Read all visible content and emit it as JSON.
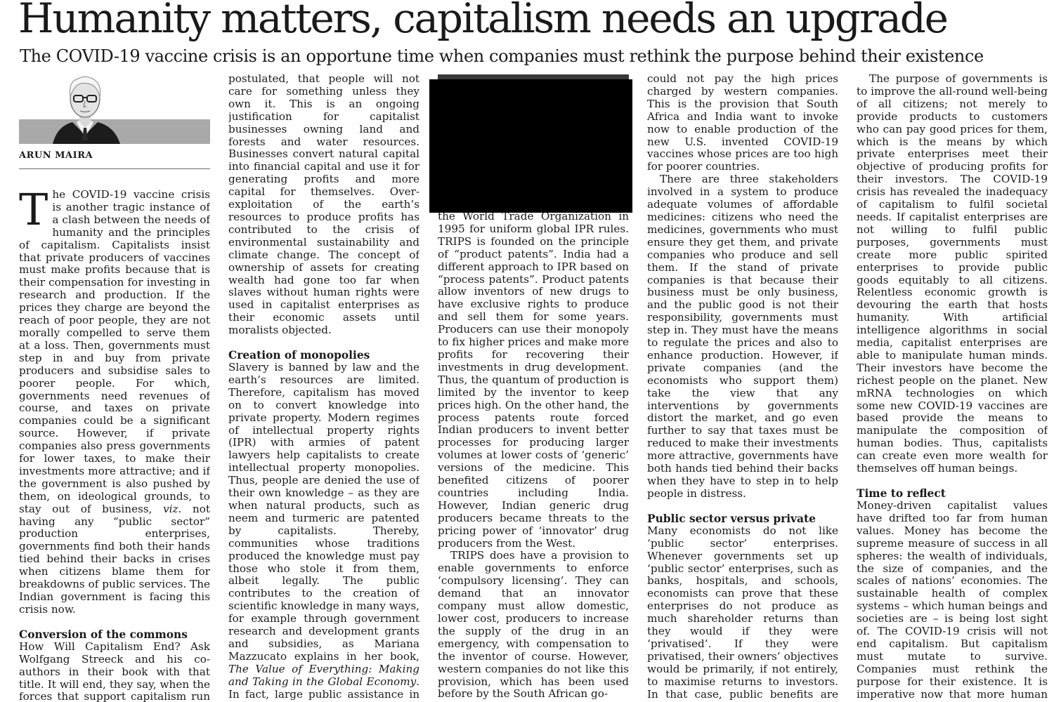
{
  "article": {
    "headline": "Humanity matters, capitalism needs an upgrade",
    "subheadline": "The COVID-19 vaccine crisis is an opportune time when companies must rethink the purpose behind their existence",
    "author": "ARUN MAIRA"
  },
  "col1": {
    "drop_cap": "T",
    "p1": "he COVID-19 vaccine crisis is another tragic instance of a clash between the needs of humanity and the principles of capitalism. Capitalists insist that private producers of vaccines must make profits because that is their compensation for investing in research and production. If the prices they charge are beyond the reach of poor people, they are not morally compelled to serve them at a loss. Then, governments must step in and buy from private producers and subsidise sales to poorer people. For which, governments need revenues of course, and taxes on private companies could be a significant source. However, if private companies also press governments for lower taxes, to make their investments more attractive; and if the government is also pushed by them, on ideological grounds, to stay out of business,",
    "p1_viz": "viz.",
    "p1_end": " not having any “public sector” production enterprises, governments find both their hands tied behind their backs in crises when citizens blame them for breakdowns of public services. The Indian government is facing this crisis now.",
    "h1": "Conversion of the commons",
    "p2": "How Will Capitalism End? Ask Wolfgang Streeck and his co-authors in their book with that title. It will end, they say, when the forces that support capitalism run out. Capitalism expands by converting"
  },
  "col2": {
    "p1": "postulated, that people will not care for something unless they own it. This is an ongoing justification for capitalist businesses owning land and forests and water resources. Businesses convert natural capital into financial capital and use it for generating profits and more capital for themselves. Over-exploitation of the earth’s resources to produce profits has contributed to the crisis of environmental sustainability and climate change. The concept of ownership of assets for creating wealth had gone too far when slaves without human rights were used in capitalist enterprises as their economic assets until moralists objected.",
    "h1": "Creation of monopolies",
    "p2": "Slavery is banned by law and the earth’s resources are limited. Therefore, capitalism has moved on to convert knowledge into private property. Modern regimes of intellectual property rights (IPR) with armies of patent lawyers help capitalists to create intellectual property monopolies. Thus, people are denied the use of their own knowledge – as they are when natural products, such as neem and turmeric are patented by capitalists. Thereby, communities whose traditions produced the knowledge must pay those who stole it from them, albeit legally. The public contributes to the creation of scientific knowledge in many ways, for example through government research and development grants and subsidies, as Mariana Mazzucato explains in her book, ",
    "p2_book": "The Value of Everything: Making and Taking in the Global Economy",
    "p2_end": ". In fact, large public assistance in various ways has enabled U.S. pharmaceutical companies to de-"
  },
  "col3": {
    "p1": "the World Trade Organization in 1995 for uniform global IPR rules. TRIPS is founded on the principle of “product patents”. India had a different approach to IPR based on “process patents”. Product patents allow inventors of new drugs to have exclusive rights to produce and sell them for some years. Producers can use their monopoly to fix higher prices and make more profits for recovering their investments in drug development. Thus, the quantum of production is limited by the inventor to keep prices high. On the other hand, the process patents route forced Indian producers to invent better processes for producing larger volumes at lower costs of ‘generic’ versions of the medicine. This benefited citizens of poorer countries including India. However, Indian generic drug producers became threats to the pricing power of ‘innovator’ drug producers from the West.",
    "p2": "TRIPS does have a provision to enable governments to enforce ‘compulsory licensing’. They can demand that an innovator company must allow domestic, lower cost, producers to increase the supply of the drug in an emergency, with compensation to the inventor of course. However, western companies do not like this provision, which has been used before by the South African go-"
  },
  "col4": {
    "p1": "could not pay the high prices charged by western companies. This is the provision that South Africa and India want to invoke now to enable production of the new U.S. invented COVID-19 vaccines whose prices are too high for poorer countries.",
    "p2": "There are three stakeholders involved in a system to produce adequate volumes of affordable medicines: citizens who need the medicines, governments who must ensure they get them, and private companies who produce and sell them. If the stand of private companies is that because their business must be only business, and the public good is not their responsibility, governments must step in. They must have the means to regulate the prices and also to enhance production. However, if private companies (and the economists who support them) take the view that any interventions by governments distort the market, and go even further to say that taxes must be reduced to make their investments more attractive, governments have both hands tied behind their backs when they have to step in to help people in distress.",
    "h1": "Public sector versus private",
    "p3": "Many economists do not like ‘public sector’ enterprises. Whenever governments set up ‘public sector’ enterprises, such as banks, hospitals, and schools, economists can prove that these enterprises do not produce as much shareholder returns than they would if they were ‘privatised’. If they were privatised, their owners’ objectives would be primarily, if not entirely, to maximise returns to investors. In that case, public benefits are relegated to the background, or even"
  },
  "col5": {
    "p1": "The purpose of governments is to improve the all-round well-being of all citizens; not merely to provide products to customers who can pay good prices for them, which is the means by which private enterprises meet their objective of producing profits for their investors. The COVID-19 crisis has revealed the inadequacy of capitalism to fulfil societal needs. If capitalist enterprises are not willing to fulfil public purposes, governments must create more public spirited enterprises to provide public goods equitably to all citizens. Relentless economic growth is devouring the earth that hosts humanity. With artificial intelligence algorithms in social media, capitalist enterprises are able to manipulate human minds. Their investors have become the richest people on the planet. New mRNA technologies on which some new COVID-19 vaccines are based provide the means to manipulate the composition of human bodies. Thus, capitalists can create even more wealth for themselves off human beings.",
    "h1": "Time to reflect",
    "p2": "Money-driven capitalist values have drifted too far from human values. Money has become the supreme measure of success in all spheres: the wealth of individuals, the size of companies, and the scales of nations’ economies. The sustainable health of complex systems – which human beings and societies are – is being lost sight of. The COVID-19 crisis will not end capitalism. But capitalism must mutate to survive. Companies must rethink the purpose for their existence. It is imperative now that more human and less money values are adopted."
  }
}
